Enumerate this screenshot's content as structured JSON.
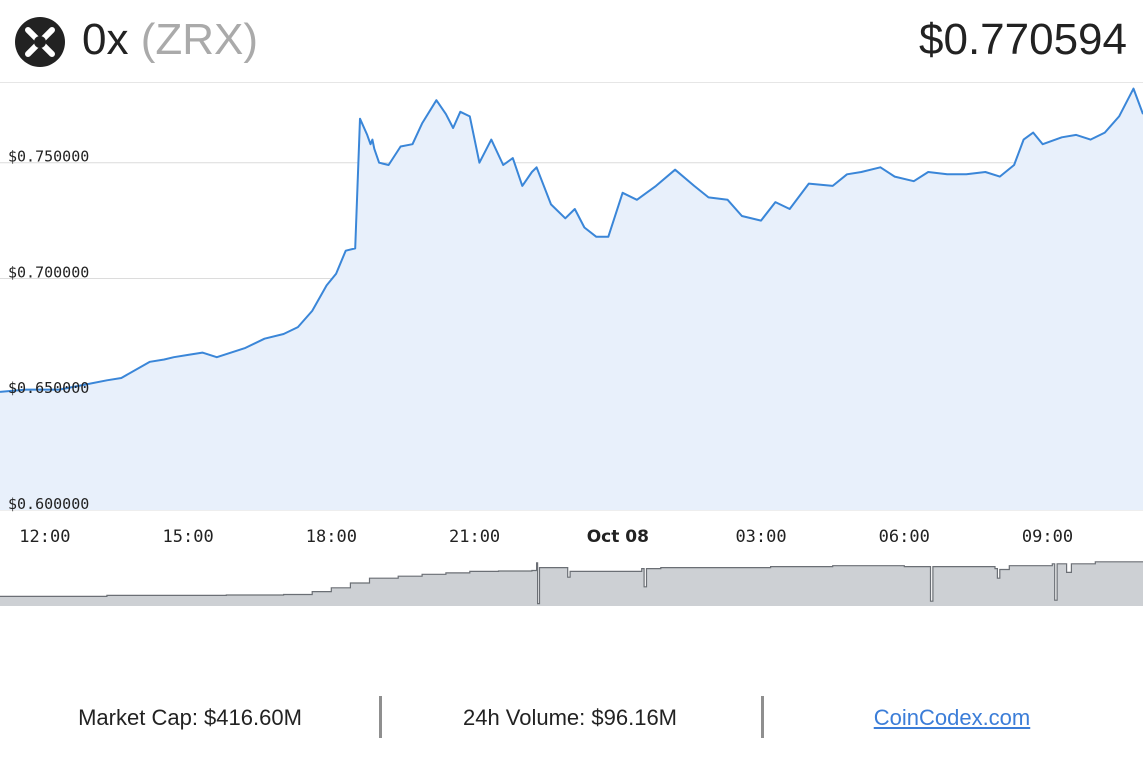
{
  "coin": {
    "name": "0x",
    "symbol": "(ZRX)",
    "price": "$0.770594",
    "logo_icon": "zrx-logo-icon"
  },
  "footer": {
    "market_cap": "Market Cap: $416.60M",
    "volume": "24h Volume: $96.16M",
    "source_link": "CoinCodex.com"
  },
  "colors": {
    "line": "#3a86d8",
    "area": "#e8f0fb",
    "volume_fill": "#cdd0d4",
    "volume_stroke": "#6b6f75",
    "grid": "#dcdcdc",
    "link": "#3b7dd8"
  },
  "chart_data": {
    "type": "area",
    "title": "",
    "xlabel": "",
    "ylabel": "",
    "ylim": [
      0.6,
      0.784
    ],
    "y_ticks": [
      {
        "value": 0.6,
        "label": "$0.600000"
      },
      {
        "value": 0.65,
        "label": "$0.650000"
      },
      {
        "value": 0.7,
        "label": "$0.700000"
      },
      {
        "value": 0.75,
        "label": "$0.750000"
      }
    ],
    "x_ticks": [
      {
        "label": "12:00",
        "t": 1,
        "bold": false
      },
      {
        "label": "15:00",
        "t": 4,
        "bold": false
      },
      {
        "label": "18:00",
        "t": 7,
        "bold": false
      },
      {
        "label": "21:00",
        "t": 10,
        "bold": false
      },
      {
        "label": "Oct 08",
        "t": 13,
        "bold": true
      },
      {
        "label": "03:00",
        "t": 16,
        "bold": false
      },
      {
        "label": "06:00",
        "t": 19,
        "bold": false
      },
      {
        "label": "09:00",
        "t": 22,
        "bold": false
      }
    ],
    "xlim": [
      0.06,
      24.0
    ],
    "x": [
      0.06,
      0.6,
      1.3,
      1.8,
      2.3,
      2.6,
      3.2,
      3.5,
      3.7,
      4.0,
      4.3,
      4.6,
      4.9,
      5.2,
      5.6,
      6.0,
      6.3,
      6.6,
      6.9,
      7.1,
      7.3,
      7.5,
      7.6,
      7.75,
      7.82,
      7.86,
      7.9,
      8.0,
      8.2,
      8.45,
      8.7,
      8.9,
      9.2,
      9.4,
      9.55,
      9.7,
      9.9,
      10.1,
      10.35,
      10.6,
      10.8,
      11.0,
      11.2,
      11.3,
      11.6,
      11.9,
      12.1,
      12.3,
      12.55,
      12.8,
      13.1,
      13.4,
      13.6,
      13.8,
      14.2,
      14.6,
      14.9,
      15.3,
      15.6,
      16.0,
      16.3,
      16.6,
      17.0,
      17.5,
      17.8,
      18.1,
      18.5,
      18.8,
      19.2,
      19.5,
      19.9,
      20.3,
      20.7,
      21.0,
      21.3,
      21.5,
      21.7,
      21.9,
      22.3,
      22.6,
      22.9,
      23.2,
      23.5,
      23.8,
      24.0
    ],
    "y": [
      0.651,
      0.652,
      0.652,
      0.654,
      0.656,
      0.657,
      0.664,
      0.665,
      0.666,
      0.667,
      0.668,
      0.666,
      0.668,
      0.67,
      0.674,
      0.676,
      0.679,
      0.686,
      0.697,
      0.702,
      0.712,
      0.713,
      0.769,
      0.762,
      0.758,
      0.76,
      0.756,
      0.75,
      0.749,
      0.757,
      0.758,
      0.767,
      0.777,
      0.771,
      0.765,
      0.772,
      0.77,
      0.75,
      0.76,
      0.749,
      0.752,
      0.74,
      0.746,
      0.748,
      0.732,
      0.726,
      0.73,
      0.722,
      0.718,
      0.718,
      0.737,
      0.734,
      0.737,
      0.74,
      0.747,
      0.74,
      0.735,
      0.734,
      0.727,
      0.725,
      0.733,
      0.73,
      0.741,
      0.74,
      0.745,
      0.746,
      0.748,
      0.744,
      0.742,
      0.746,
      0.745,
      0.745,
      0.746,
      0.744,
      0.749,
      0.76,
      0.763,
      0.758,
      0.761,
      0.762,
      0.76,
      0.763,
      0.77,
      0.782,
      0.771
    ],
    "series": [
      {
        "name": "",
        "role": "price",
        "values_ref": "y"
      },
      {
        "name": "",
        "role": "volume"
      }
    ],
    "volume_steps": [
      [
        0.06,
        0.2
      ],
      [
        2.3,
        0.22
      ],
      [
        4.8,
        0.23
      ],
      [
        6.0,
        0.24
      ],
      [
        6.6,
        0.3
      ],
      [
        7.0,
        0.38
      ],
      [
        7.4,
        0.48
      ],
      [
        7.8,
        0.58
      ],
      [
        8.4,
        0.62
      ],
      [
        8.9,
        0.66
      ],
      [
        9.4,
        0.69
      ],
      [
        9.9,
        0.72
      ],
      [
        10.5,
        0.73
      ],
      [
        11.2,
        0.74
      ],
      [
        11.3,
        0.9
      ],
      [
        11.32,
        0.05
      ],
      [
        11.36,
        0.8
      ],
      [
        11.95,
        0.6
      ],
      [
        12.0,
        0.72
      ],
      [
        13.5,
        0.78
      ],
      [
        13.55,
        0.4
      ],
      [
        13.6,
        0.78
      ],
      [
        13.9,
        0.8
      ],
      [
        16.2,
        0.82
      ],
      [
        17.5,
        0.84
      ],
      [
        19.0,
        0.82
      ],
      [
        19.5,
        0.82
      ],
      [
        19.55,
        0.1
      ],
      [
        19.6,
        0.82
      ],
      [
        20.9,
        0.78
      ],
      [
        20.95,
        0.58
      ],
      [
        21.0,
        0.76
      ],
      [
        21.2,
        0.84
      ],
      [
        22.1,
        0.88
      ],
      [
        22.15,
        0.12
      ],
      [
        22.2,
        0.88
      ],
      [
        22.4,
        0.7
      ],
      [
        22.5,
        0.88
      ],
      [
        23.0,
        0.92
      ],
      [
        24.0,
        0.92
      ]
    ]
  }
}
